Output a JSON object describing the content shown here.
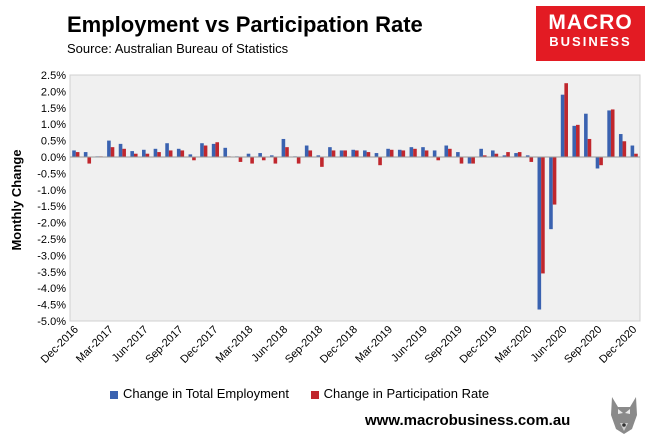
{
  "title": "Employment vs Participation Rate",
  "source": "Source: Australian Bureau of Statistics",
  "logo": {
    "line1": "MACRO",
    "line2": "BUSINESS"
  },
  "footer": {
    "url": "www.macrobusiness.com.au"
  },
  "colors": {
    "employment": "#3a62b0",
    "participation": "#c0272d",
    "plot_bg": "#f0f0f0",
    "logo_bg": "#e31b23"
  },
  "chart_data": {
    "type": "bar",
    "title": "Employment vs Participation Rate",
    "xlabel": "",
    "ylabel": "Monthly Change",
    "ylim": [
      -5.0,
      2.5
    ],
    "yticks": [
      "2.5%",
      "2.0%",
      "1.5%",
      "1.0%",
      "0.5%",
      "0.0%",
      "-0.5%",
      "-1.0%",
      "-1.5%",
      "-2.0%",
      "-2.5%",
      "-3.0%",
      "-3.5%",
      "-4.0%",
      "-4.5%",
      "-5.0%"
    ],
    "ytick_values": [
      2.5,
      2.0,
      1.5,
      1.0,
      0.5,
      0.0,
      -0.5,
      -1.0,
      -1.5,
      -2.0,
      -2.5,
      -3.0,
      -3.5,
      -4.0,
      -4.5,
      -5.0
    ],
    "categories": [
      "Dec-2016",
      "Jan-2017",
      "Feb-2017",
      "Mar-2017",
      "Apr-2017",
      "May-2017",
      "Jun-2017",
      "Jul-2017",
      "Aug-2017",
      "Sep-2017",
      "Oct-2017",
      "Nov-2017",
      "Dec-2017",
      "Jan-2018",
      "Feb-2018",
      "Mar-2018",
      "Apr-2018",
      "May-2018",
      "Jun-2018",
      "Jul-2018",
      "Aug-2018",
      "Sep-2018",
      "Oct-2018",
      "Nov-2018",
      "Dec-2018",
      "Jan-2019",
      "Feb-2019",
      "Mar-2019",
      "Apr-2019",
      "May-2019",
      "Jun-2019",
      "Jul-2019",
      "Aug-2019",
      "Sep-2019",
      "Oct-2019",
      "Nov-2019",
      "Dec-2019",
      "Jan-2020",
      "Feb-2020",
      "Mar-2020",
      "Apr-2020",
      "May-2020",
      "Jun-2020",
      "Jul-2020",
      "Aug-2020",
      "Sep-2020",
      "Oct-2020",
      "Nov-2020",
      "Dec-2020"
    ],
    "xtick_labels": [
      "Dec-2016",
      "Mar-2017",
      "Jun-2017",
      "Sep-2017",
      "Dec-2017",
      "Mar-2018",
      "Jun-2018",
      "Sep-2018",
      "Dec-2018",
      "Mar-2019",
      "Jun-2019",
      "Sep-2019",
      "Dec-2019",
      "Mar-2020",
      "Jun-2020",
      "Sep-2020",
      "Dec-2020"
    ],
    "series": [
      {
        "name": "Change in Total Employment",
        "values": [
          0.2,
          0.15,
          0.02,
          0.5,
          0.4,
          0.18,
          0.22,
          0.25,
          0.42,
          0.25,
          0.08,
          0.42,
          0.4,
          0.28,
          0.02,
          0.1,
          0.12,
          0.05,
          0.55,
          0.02,
          0.35,
          0.05,
          0.3,
          0.2,
          0.22,
          0.2,
          0.12,
          0.25,
          0.22,
          0.3,
          0.3,
          0.2,
          0.35,
          0.15,
          -0.2,
          0.25,
          0.2,
          0.05,
          0.12,
          0.05,
          -4.65,
          -2.2,
          1.9,
          0.95,
          1.32,
          -0.35,
          1.42,
          0.7,
          0.35
        ]
      },
      {
        "name": "Change in Participation Rate",
        "values": [
          0.15,
          -0.2,
          0.02,
          0.3,
          0.25,
          0.1,
          0.1,
          0.15,
          0.2,
          0.2,
          -0.1,
          0.35,
          0.45,
          0.02,
          -0.15,
          -0.2,
          -0.1,
          -0.2,
          0.3,
          -0.2,
          0.2,
          -0.3,
          0.2,
          0.2,
          0.2,
          0.15,
          -0.25,
          0.22,
          0.2,
          0.25,
          0.2,
          -0.1,
          0.25,
          -0.2,
          -0.2,
          0.05,
          0.1,
          0.15,
          0.15,
          -0.15,
          -3.55,
          -1.45,
          2.25,
          0.98,
          0.55,
          -0.25,
          1.45,
          0.48,
          0.1
        ]
      }
    ],
    "legend": [
      "Change in Total Employment",
      "Change in Participation Rate"
    ],
    "legend_position": "bottom",
    "grid": false
  }
}
